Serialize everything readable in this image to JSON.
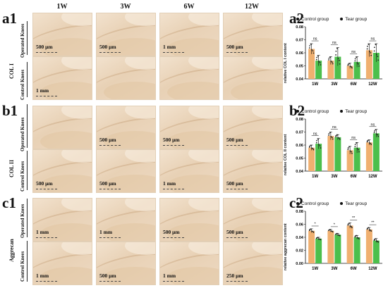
{
  "figure": {
    "columns": [
      "1W",
      "3W",
      "6W",
      "12W"
    ],
    "panels": [
      {
        "letter": "a1",
        "stain": "COL I",
        "rows": [
          {
            "label": "Operated Knees",
            "scalebars": [
              "500 μm",
              "500 μm",
              "1 mm",
              "500 μm"
            ]
          },
          {
            "label": "Control Knees",
            "scalebars": [
              "1 mm",
              "",
              "",
              ""
            ]
          }
        ]
      },
      {
        "letter": "b1",
        "stain": "COL II",
        "rows": [
          {
            "label": "Operated Knees",
            "scalebars": [
              "",
              "500 μm",
              "500 μm",
              "500 μm"
            ]
          },
          {
            "label": "Control Knees",
            "scalebars": [
              "500 μm",
              "500 μm",
              "1 mm",
              "500 μm"
            ]
          }
        ]
      },
      {
        "letter": "c1",
        "stain": "Aggrecan",
        "rows": [
          {
            "label": "Operated Knees",
            "scalebars": [
              "1 mm",
              "1 mm",
              "500 μm",
              "500 μm"
            ]
          },
          {
            "label": "Control Knees",
            "scalebars": [
              "1 mm",
              "500 μm",
              "1 mm",
              "250 μm"
            ]
          }
        ]
      }
    ]
  },
  "chart_data": [
    {
      "panel": "a2",
      "type": "bar",
      "categories": [
        "1W",
        "3W",
        "6W",
        "12W"
      ],
      "series": [
        {
          "name": "Control group",
          "values": [
            0.063,
            0.054,
            0.05,
            0.062
          ],
          "errors": [
            0.004,
            0.003,
            0.002,
            0.005
          ],
          "color": "#f0b070"
        },
        {
          "name": "Tear group",
          "values": [
            0.054,
            0.057,
            0.053,
            0.06
          ],
          "errors": [
            0.004,
            0.007,
            0.004,
            0.007
          ],
          "color": "#4cbf4c"
        }
      ],
      "ylabel": "relative COL I content",
      "ylim": [
        0.04,
        0.08
      ],
      "yticks": [
        "0.04",
        "0.05",
        "0.06",
        "0.07",
        "0.08"
      ],
      "significance": [
        "ns",
        "ns",
        "ns",
        "ns"
      ]
    },
    {
      "panel": "b2",
      "type": "bar",
      "categories": [
        "1W",
        "3W",
        "6W",
        "12W"
      ],
      "series": [
        {
          "name": "Control group",
          "values": [
            0.058,
            0.067,
            0.056,
            0.062
          ],
          "errors": [
            0.002,
            0.003,
            0.003,
            0.002
          ],
          "color": "#f0b070"
        },
        {
          "name": "Tear group",
          "values": [
            0.061,
            0.066,
            0.058,
            0.069
          ],
          "errors": [
            0.004,
            0.002,
            0.004,
            0.003
          ],
          "color": "#4cbf4c"
        }
      ],
      "ylabel": "relative COL II content",
      "ylim": [
        0.04,
        0.08
      ],
      "yticks": [
        "0.04",
        "0.05",
        "0.06",
        "0.07",
        "0.08"
      ],
      "significance": [
        "ns",
        "ns",
        "ns",
        "ns"
      ]
    },
    {
      "panel": "c2",
      "type": "bar",
      "categories": [
        "1W",
        "3W",
        "6W",
        "12W"
      ],
      "series": [
        {
          "name": "Control group",
          "values": [
            0.05,
            0.05,
            0.058,
            0.052
          ],
          "errors": [
            0.003,
            0.002,
            0.004,
            0.003
          ],
          "color": "#f0b070"
        },
        {
          "name": "Tear group",
          "values": [
            0.038,
            0.044,
            0.04,
            0.035
          ],
          "errors": [
            0.002,
            0.002,
            0.003,
            0.003
          ],
          "color": "#4cbf4c"
        }
      ],
      "ylabel": "relative aggrecan content",
      "ylim": [
        0.0,
        0.08
      ],
      "yticks": [
        "0.00",
        "0.02",
        "0.04",
        "0.06",
        "0.08"
      ],
      "significance": [
        "*",
        "*",
        "**",
        "**"
      ]
    }
  ]
}
